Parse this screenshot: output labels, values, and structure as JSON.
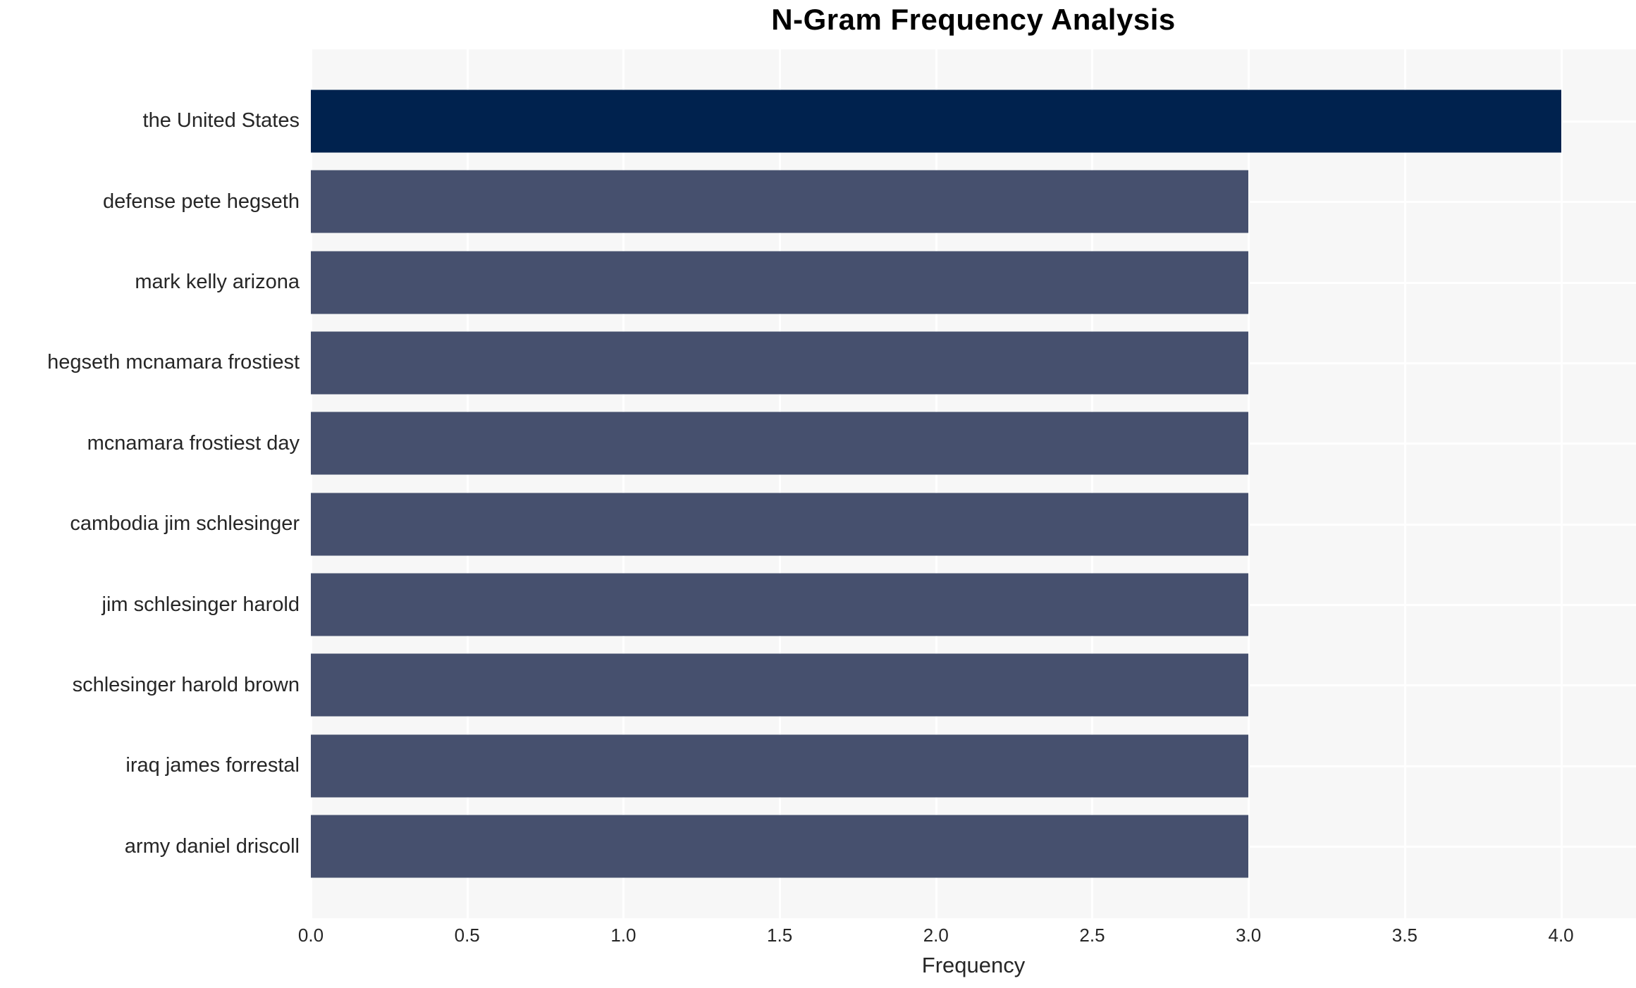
{
  "title": "N-Gram Frequency Analysis",
  "chart_data": {
    "type": "bar",
    "orientation": "horizontal",
    "title": "N-Gram Frequency Analysis",
    "xlabel": "Frequency",
    "ylabel": "",
    "categories": [
      "the United States",
      "defense pete hegseth",
      "mark kelly arizona",
      "hegseth mcnamara frostiest",
      "mcnamara frostiest day",
      "cambodia jim schlesinger",
      "jim schlesinger harold",
      "schlesinger harold brown",
      "iraq james forrestal",
      "army daniel driscoll"
    ],
    "values": [
      4,
      3,
      3,
      3,
      3,
      3,
      3,
      3,
      3,
      3
    ],
    "bar_colors": [
      "#00224e",
      "#46506e",
      "#46506e",
      "#46506e",
      "#46506e",
      "#46506e",
      "#46506e",
      "#46506e",
      "#46506e",
      "#46506e"
    ],
    "x_ticks": [
      0,
      0.5,
      1,
      1.5,
      2,
      2.5,
      3,
      3.5,
      4
    ],
    "x_tick_labels": [
      "0.0",
      "0.5",
      "1.0",
      "1.5",
      "2.0",
      "2.5",
      "3.0",
      "3.5",
      "4.0"
    ],
    "xlim": [
      0,
      4.24
    ],
    "grid": true,
    "legend_position": "none",
    "colors": {
      "highlight_bar": "#00224e",
      "default_bar": "#46506e",
      "plot_background": "#f7f7f7",
      "grid_line": "#ffffff",
      "text": "#262626",
      "title_text": "#000000"
    }
  }
}
